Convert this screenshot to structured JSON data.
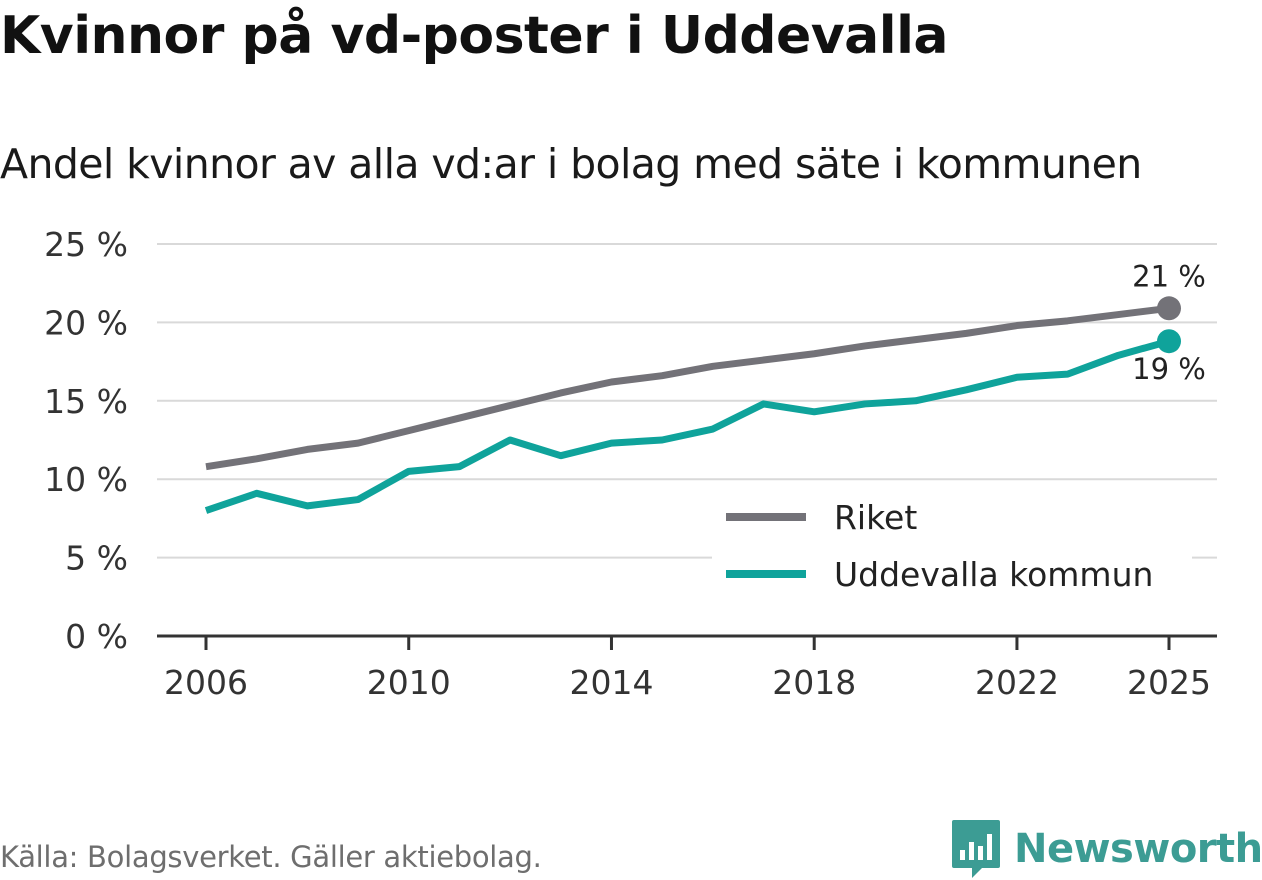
{
  "title": "Kvinnor på vd-poster i Uddevalla",
  "subtitle": "Andel kvinnor av alla vd:ar i bolag med säte i kommunen",
  "source": "Källa: Bolagsverket. Gäller aktiebolag.",
  "brand": {
    "name": "Newsworthy",
    "icon": "bar-chart-logo-icon",
    "color": "#3c9c94"
  },
  "chart_data": {
    "type": "line",
    "x": [
      2006,
      2007,
      2008,
      2009,
      2010,
      2011,
      2012,
      2013,
      2014,
      2015,
      2016,
      2017,
      2018,
      2019,
      2020,
      2021,
      2022,
      2023,
      2024,
      2025
    ],
    "series": [
      {
        "name": "Riket",
        "color": "#737278",
        "values": [
          10.8,
          11.3,
          11.9,
          12.3,
          13.1,
          13.9,
          14.7,
          15.5,
          16.2,
          16.6,
          17.2,
          17.6,
          18.0,
          18.5,
          18.9,
          19.3,
          19.8,
          20.1,
          20.5,
          20.9
        ],
        "end_label": "21 %"
      },
      {
        "name": "Uddevalla kommun",
        "color": "#0fa39b",
        "values": [
          8.0,
          9.1,
          8.3,
          8.7,
          10.5,
          10.8,
          12.5,
          11.5,
          12.3,
          12.5,
          13.2,
          14.8,
          14.3,
          14.8,
          15.0,
          15.7,
          16.5,
          16.7,
          17.9,
          18.8
        ],
        "end_label": "19 %"
      }
    ],
    "y_ticks": [
      0,
      5,
      10,
      15,
      20,
      25
    ],
    "y_tick_labels": [
      "0 %",
      "5 %",
      "10 %",
      "15 %",
      "20 %",
      "25 %"
    ],
    "x_ticks": [
      2006,
      2010,
      2014,
      2018,
      2022,
      2025
    ],
    "x_tick_labels": [
      "2006",
      "2010",
      "2014",
      "2018",
      "2022",
      "2025"
    ],
    "ylim": [
      0,
      25
    ],
    "xlim": [
      2006,
      2025
    ],
    "xlabel": "",
    "ylabel": "",
    "legend": "bottom-right",
    "grid": true
  }
}
